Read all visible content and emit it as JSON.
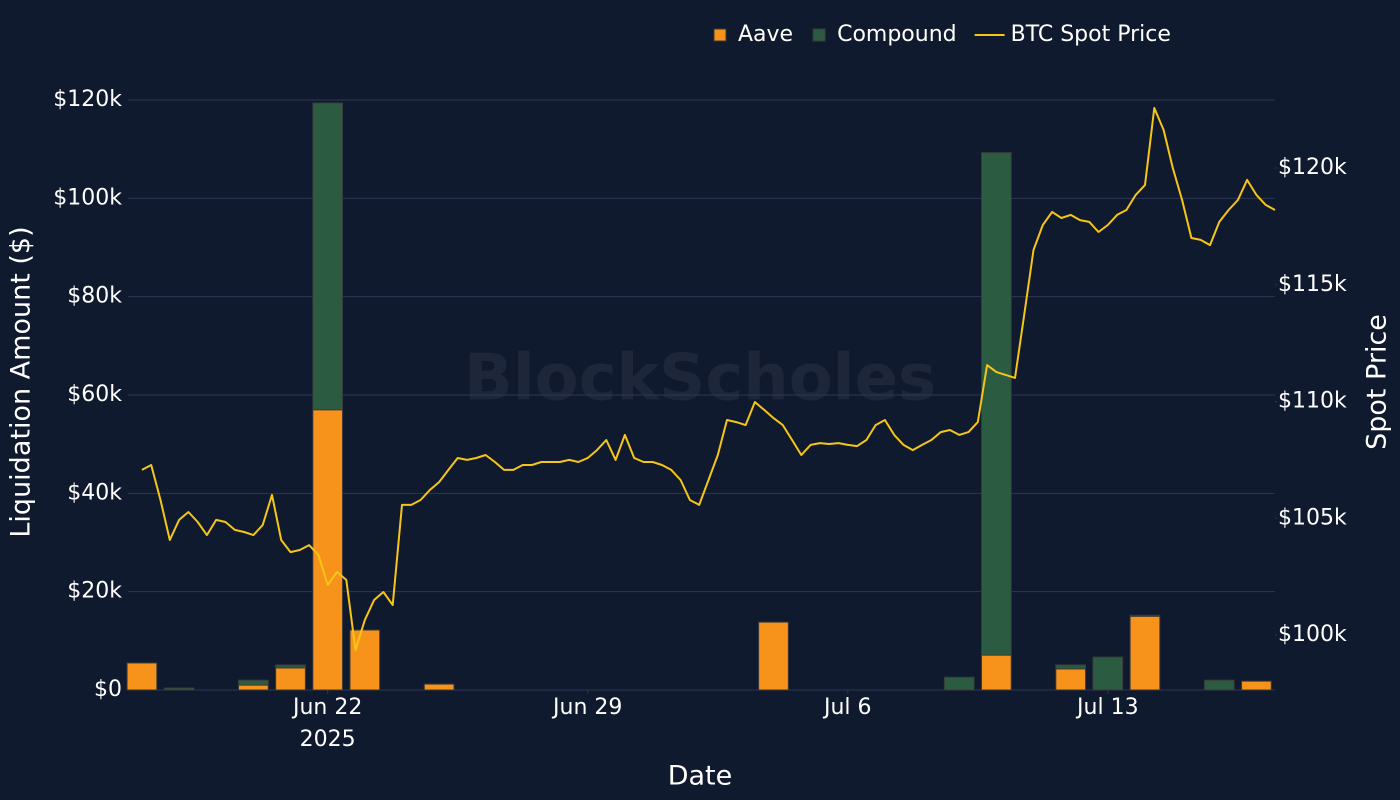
{
  "chart_data": {
    "type": "bar",
    "stacked": true,
    "watermark": "BlockScholes",
    "xlabel": "Date",
    "ylabel": "Liquidation Amount ($)",
    "y2label": "Spot Price",
    "legend": "top-right",
    "grid": true,
    "categories": [
      "2025-06-17",
      "2025-06-18",
      "2025-06-19",
      "2025-06-20",
      "2025-06-21",
      "2025-06-22",
      "2025-06-23",
      "2025-06-24",
      "2025-06-25",
      "2025-06-26",
      "2025-06-27",
      "2025-06-28",
      "2025-06-29",
      "2025-06-30",
      "2025-07-01",
      "2025-07-02",
      "2025-07-03",
      "2025-07-04",
      "2025-07-05",
      "2025-07-06",
      "2025-07-07",
      "2025-07-08",
      "2025-07-09",
      "2025-07-10",
      "2025-07-11",
      "2025-07-12",
      "2025-07-13",
      "2025-07-14",
      "2025-07-15",
      "2025-07-16",
      "2025-07-17"
    ],
    "series": [
      {
        "name": "Aave",
        "color": "#f7931a",
        "values": [
          5500,
          0,
          0,
          1000,
          4500,
          57000,
          12200,
          0,
          1200,
          0,
          0,
          0,
          0,
          0,
          0,
          0,
          0,
          13800,
          0,
          0,
          0,
          0,
          0,
          7100,
          0,
          4300,
          0,
          15000,
          0,
          0,
          1800
        ]
      },
      {
        "name": "Compound",
        "color": "#2b5c42",
        "values": [
          0,
          400,
          0,
          1000,
          600,
          62400,
          0,
          0,
          0,
          0,
          0,
          0,
          0,
          0,
          0,
          0,
          0,
          0,
          0,
          0,
          0,
          0,
          2600,
          102200,
          0,
          800,
          6700,
          200,
          0,
          2000,
          0
        ]
      },
      {
        "name": "BTC Spot Price",
        "type": "line",
        "axis": "y2",
        "color": "#f5c518",
        "x": [
          "2025-06-17T00:00",
          "2025-06-17T06:00",
          "2025-06-17T12:00",
          "2025-06-17T18:00",
          "2025-06-18T00:00",
          "2025-06-18T06:00",
          "2025-06-18T12:00",
          "2025-06-18T18:00",
          "2025-06-19T00:00",
          "2025-06-19T06:00",
          "2025-06-19T12:00",
          "2025-06-19T18:00",
          "2025-06-20T00:00",
          "2025-06-20T06:00",
          "2025-06-20T12:00",
          "2025-06-20T18:00",
          "2025-06-21T00:00",
          "2025-06-21T06:00",
          "2025-06-21T12:00",
          "2025-06-21T18:00",
          "2025-06-22T00:00",
          "2025-06-22T06:00",
          "2025-06-22T12:00",
          "2025-06-22T18:00",
          "2025-06-23T00:00",
          "2025-06-23T06:00",
          "2025-06-23T12:00",
          "2025-06-23T18:00",
          "2025-06-24T00:00",
          "2025-06-24T06:00",
          "2025-06-24T12:00",
          "2025-06-24T18:00",
          "2025-06-25T00:00",
          "2025-06-25T06:00",
          "2025-06-25T12:00",
          "2025-06-25T18:00",
          "2025-06-26T00:00",
          "2025-06-26T06:00",
          "2025-06-26T12:00",
          "2025-06-26T18:00",
          "2025-06-27T00:00",
          "2025-06-27T06:00",
          "2025-06-27T12:00",
          "2025-06-27T18:00",
          "2025-06-28T00:00",
          "2025-06-28T06:00",
          "2025-06-28T12:00",
          "2025-06-28T18:00",
          "2025-06-29T00:00",
          "2025-06-29T06:00",
          "2025-06-29T12:00",
          "2025-06-29T18:00",
          "2025-06-30T00:00",
          "2025-06-30T06:00",
          "2025-06-30T12:00",
          "2025-06-30T18:00",
          "2025-07-01T00:00",
          "2025-07-01T06:00",
          "2025-07-01T12:00",
          "2025-07-01T18:00",
          "2025-07-02T00:00",
          "2025-07-02T06:00",
          "2025-07-02T12:00",
          "2025-07-02T18:00",
          "2025-07-03T00:00",
          "2025-07-03T06:00",
          "2025-07-03T12:00",
          "2025-07-03T18:00",
          "2025-07-04T00:00",
          "2025-07-04T06:00",
          "2025-07-04T12:00",
          "2025-07-04T18:00",
          "2025-07-05T00:00",
          "2025-07-05T06:00",
          "2025-07-05T12:00",
          "2025-07-05T18:00",
          "2025-07-06T00:00",
          "2025-07-06T06:00",
          "2025-07-06T12:00",
          "2025-07-06T18:00",
          "2025-07-07T00:00",
          "2025-07-07T06:00",
          "2025-07-07T12:00",
          "2025-07-07T18:00",
          "2025-07-08T00:00",
          "2025-07-08T06:00",
          "2025-07-08T12:00",
          "2025-07-08T18:00",
          "2025-07-09T00:00",
          "2025-07-09T06:00",
          "2025-07-09T12:00",
          "2025-07-09T18:00",
          "2025-07-10T00:00",
          "2025-07-10T06:00",
          "2025-07-10T12:00",
          "2025-07-10T18:00",
          "2025-07-11T00:00",
          "2025-07-11T06:00",
          "2025-07-11T12:00",
          "2025-07-11T18:00",
          "2025-07-12T00:00",
          "2025-07-12T06:00",
          "2025-07-12T12:00",
          "2025-07-12T18:00",
          "2025-07-13T00:00",
          "2025-07-13T06:00",
          "2025-07-13T12:00",
          "2025-07-13T18:00",
          "2025-07-14T00:00",
          "2025-07-14T06:00",
          "2025-07-14T12:00",
          "2025-07-14T18:00",
          "2025-07-15T00:00",
          "2025-07-15T06:00",
          "2025-07-15T12:00",
          "2025-07-15T18:00",
          "2025-07-16T00:00",
          "2025-07-16T06:00",
          "2025-07-16T12:00",
          "2025-07-16T18:00",
          "2025-07-17T00:00",
          "2025-07-17T06:00",
          "2025-07-17T12:00"
        ],
        "values": [
          107070,
          107280,
          105780,
          104070,
          104930,
          105270,
          104840,
          104280,
          104930,
          104840,
          104500,
          104410,
          104280,
          104710,
          106000,
          104070,
          103550,
          103640,
          103850,
          103430,
          102140,
          102700,
          102360,
          99360,
          100640,
          101500,
          101840,
          101280,
          105570,
          105570,
          105780,
          106210,
          106550,
          107070,
          107580,
          107500,
          107580,
          107710,
          107410,
          107070,
          107070,
          107280,
          107280,
          107410,
          107410,
          107410,
          107500,
          107410,
          107580,
          107920,
          108350,
          107500,
          108570,
          107580,
          107410,
          107410,
          107280,
          107070,
          106640,
          105780,
          105570,
          106640,
          107710,
          109210,
          109120,
          108990,
          109980,
          109640,
          109290,
          108990,
          108350,
          107710,
          108140,
          108220,
          108180,
          108220,
          108140,
          108090,
          108350,
          108990,
          109210,
          108570,
          108140,
          107920,
          108140,
          108350,
          108690,
          108780,
          108570,
          108690,
          109120,
          111560,
          111260,
          111140,
          111010,
          113710,
          116490,
          117560,
          118120,
          117860,
          117990,
          117770,
          117690,
          117260,
          117560,
          117990,
          118200,
          118850,
          119270,
          122570,
          121630,
          120000,
          118630,
          117000,
          116920,
          116700,
          117690,
          118200,
          118630,
          119490,
          118850,
          118420,
          118200
        ]
      }
    ],
    "xlim": [
      "2025-06-16T15:00",
      "2025-07-17T12:00"
    ],
    "xticks": [
      {
        "value": "2025-06-22",
        "label": "Jun 22\n2025"
      },
      {
        "value": "2025-06-29",
        "label": "Jun 29"
      },
      {
        "value": "2025-07-06",
        "label": "Jul 6"
      },
      {
        "value": "2025-07-13",
        "label": "Jul 13"
      }
    ],
    "ylim": [
      0,
      120000
    ],
    "yticks": [
      {
        "value": 0,
        "label": "$0"
      },
      {
        "value": 20000,
        "label": "$20k"
      },
      {
        "value": 40000,
        "label": "$40k"
      },
      {
        "value": 60000,
        "label": "$60k"
      },
      {
        "value": 80000,
        "label": "$80k"
      },
      {
        "value": 100000,
        "label": "$100k"
      },
      {
        "value": 120000,
        "label": "$120k"
      }
    ],
    "y2lim": [
      97645,
      122912
    ],
    "y2ticks": [
      {
        "value": 100000,
        "label": "$100k"
      },
      {
        "value": 105000,
        "label": "$105k"
      },
      {
        "value": 110000,
        "label": "$110k"
      },
      {
        "value": 115000,
        "label": "$115k"
      },
      {
        "value": 120000,
        "label": "$120k"
      }
    ]
  }
}
